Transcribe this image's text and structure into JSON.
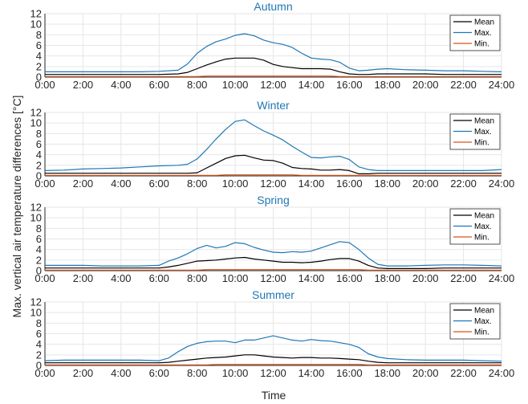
{
  "chart_data": {
    "type": "line",
    "xlabel": "Time",
    "ylabel": "Max. vertical air temperature differences [°C]",
    "x_ticks": [
      "0:00",
      "2:00",
      "4:00",
      "6:00",
      "8:00",
      "10:00",
      "12:00",
      "14:00",
      "16:00",
      "18:00",
      "20:00",
      "22:00",
      "24:00"
    ],
    "y_ticks": [
      "0",
      "2",
      "4",
      "6",
      "8",
      "10",
      "12"
    ],
    "ylim": [
      0,
      12
    ],
    "xlim_hours": [
      0,
      24
    ],
    "grid": true,
    "legend_position": "top-right",
    "series_colors": {
      "Mean": "#000000",
      "Max.": "#1f77b4",
      "Min.": "#d95319"
    },
    "panels": [
      {
        "title": "Autumn",
        "x_hours": [
          0,
          1,
          2,
          3,
          4,
          5,
          6,
          7,
          7.5,
          8,
          8.5,
          9,
          9.5,
          10,
          10.5,
          11,
          11.5,
          12,
          12.5,
          13,
          13.5,
          14,
          14.5,
          15,
          15.5,
          16,
          16.5,
          17,
          17.5,
          18,
          19,
          20,
          21,
          22,
          23,
          24
        ],
        "series": [
          {
            "name": "Mean",
            "values": [
              0.5,
              0.5,
              0.5,
              0.5,
              0.5,
              0.5,
              0.5,
              0.6,
              0.9,
              1.6,
              2.3,
              2.9,
              3.4,
              3.6,
              3.6,
              3.6,
              3.2,
              2.4,
              2.0,
              1.8,
              1.6,
              1.6,
              1.6,
              1.5,
              1.0,
              0.6,
              0.5,
              0.5,
              0.6,
              0.6,
              0.6,
              0.6,
              0.5,
              0.5,
              0.5,
              0.5
            ]
          },
          {
            "name": "Max.",
            "values": [
              1.0,
              1.0,
              1.0,
              1.0,
              1.0,
              1.0,
              1.1,
              1.3,
              2.5,
              4.5,
              5.8,
              6.7,
              7.2,
              7.9,
              8.2,
              7.8,
              7.0,
              6.5,
              6.2,
              5.6,
              4.5,
              3.6,
              3.4,
              3.3,
              2.8,
              1.7,
              1.2,
              1.3,
              1.5,
              1.6,
              1.4,
              1.3,
              1.2,
              1.2,
              1.1,
              1.0
            ]
          },
          {
            "name": "Min.",
            "values": [
              0.1,
              0.1,
              0.1,
              0.1,
              0.1,
              0.1,
              0.1,
              0.1,
              0.1,
              0.1,
              0.2,
              0.2,
              0.2,
              0.2,
              0.2,
              0.2,
              0.2,
              0.2,
              0.2,
              0.2,
              0.2,
              0.2,
              0.2,
              0.2,
              0.1,
              0.1,
              0.1,
              0.1,
              0.1,
              0.1,
              0.1,
              0.1,
              0.1,
              0.1,
              0.1,
              0.1
            ]
          }
        ]
      },
      {
        "title": "Winter",
        "x_hours": [
          0,
          1,
          2,
          3,
          4,
          5,
          6,
          7,
          7.5,
          8,
          8.5,
          9,
          9.5,
          10,
          10.5,
          11,
          11.5,
          12,
          12.5,
          13,
          13.5,
          14,
          14.5,
          15,
          15.5,
          16,
          16.5,
          17,
          17.5,
          18,
          19,
          20,
          21,
          22,
          23,
          24
        ],
        "series": [
          {
            "name": "Mean",
            "values": [
              0.5,
              0.5,
              0.5,
              0.5,
              0.5,
              0.5,
              0.5,
              0.5,
              0.5,
              0.6,
              1.5,
              2.4,
              3.3,
              3.8,
              3.9,
              3.4,
              3.0,
              2.9,
              2.4,
              1.6,
              1.4,
              1.3,
              1.1,
              1.1,
              1.2,
              1.0,
              0.4,
              0.4,
              0.5,
              0.5,
              0.5,
              0.5,
              0.5,
              0.5,
              0.5,
              0.5
            ]
          },
          {
            "name": "Max.",
            "values": [
              1.0,
              1.1,
              1.3,
              1.4,
              1.5,
              1.7,
              1.9,
              2.0,
              2.2,
              3.2,
              5.0,
              7.0,
              8.8,
              10.3,
              10.6,
              9.5,
              8.5,
              7.7,
              6.8,
              5.6,
              4.5,
              3.5,
              3.4,
              3.6,
              3.7,
              3.1,
              1.7,
              1.2,
              1.0,
              1.0,
              1.0,
              1.0,
              1.0,
              1.0,
              1.0,
              1.2
            ]
          },
          {
            "name": "Min.",
            "values": [
              0.1,
              0.1,
              0.1,
              0.1,
              0.1,
              0.1,
              0.1,
              0.1,
              0.1,
              0.1,
              0.1,
              0.1,
              0.2,
              0.2,
              0.2,
              0.2,
              0.2,
              0.2,
              0.2,
              0.2,
              0.1,
              0.1,
              0.1,
              0.1,
              0.1,
              0.1,
              0.1,
              0.1,
              0.1,
              0.1,
              0.1,
              0.1,
              0.1,
              0.1,
              0.1,
              0.1
            ]
          }
        ]
      },
      {
        "title": "Spring",
        "x_hours": [
          0,
          1,
          2,
          3,
          4,
          5,
          6,
          6.5,
          7,
          7.5,
          8,
          8.5,
          9,
          9.5,
          10,
          10.5,
          11,
          11.5,
          12,
          12.5,
          13,
          13.5,
          14,
          14.5,
          15,
          15.5,
          16,
          16.5,
          17,
          17.5,
          18,
          19,
          20,
          21,
          22,
          23,
          24
        ],
        "series": [
          {
            "name": "Mean",
            "values": [
              0.5,
              0.5,
              0.5,
              0.5,
              0.5,
              0.5,
              0.5,
              0.7,
              1.0,
              1.4,
              1.8,
              1.9,
              2.0,
              2.2,
              2.4,
              2.5,
              2.2,
              2.0,
              1.8,
              1.6,
              1.6,
              1.5,
              1.6,
              1.8,
              2.1,
              2.3,
              2.3,
              1.8,
              1.0,
              0.5,
              0.4,
              0.4,
              0.4,
              0.5,
              0.5,
              0.5,
              0.5
            ]
          },
          {
            "name": "Max.",
            "values": [
              1.0,
              1.0,
              1.0,
              0.9,
              0.9,
              0.9,
              1.0,
              1.8,
              2.4,
              3.2,
              4.2,
              4.8,
              4.3,
              4.6,
              5.3,
              5.1,
              4.4,
              3.9,
              3.5,
              3.4,
              3.6,
              3.5,
              3.7,
              4.3,
              4.9,
              5.5,
              5.3,
              4.0,
              2.4,
              1.2,
              0.9,
              0.9,
              1.0,
              1.1,
              1.1,
              1.0,
              0.9
            ]
          },
          {
            "name": "Min.",
            "values": [
              0.1,
              0.1,
              0.1,
              0.1,
              0.1,
              0.1,
              0.1,
              0.1,
              0.1,
              0.1,
              0.1,
              0.2,
              0.2,
              0.2,
              0.2,
              0.2,
              0.2,
              0.2,
              0.2,
              0.2,
              0.2,
              0.2,
              0.2,
              0.2,
              0.2,
              0.2,
              0.2,
              0.2,
              0.1,
              0.1,
              0.1,
              0.1,
              0.1,
              0.1,
              0.1,
              0.1,
              0.1
            ]
          }
        ]
      },
      {
        "title": "Summer",
        "x_hours": [
          0,
          1,
          2,
          3,
          4,
          5,
          6,
          6.5,
          7,
          7.5,
          8,
          8.5,
          9,
          9.5,
          10,
          10.5,
          11,
          11.5,
          12,
          12.5,
          13,
          13.5,
          14,
          14.5,
          15,
          15.5,
          16,
          16.5,
          17,
          17.5,
          18,
          19,
          20,
          21,
          22,
          23,
          24
        ],
        "series": [
          {
            "name": "Mean",
            "values": [
              0.5,
              0.5,
              0.5,
              0.5,
              0.5,
              0.5,
              0.5,
              0.6,
              0.8,
              1.0,
              1.2,
              1.4,
              1.5,
              1.6,
              1.8,
              2.0,
              2.0,
              1.8,
              1.6,
              1.5,
              1.4,
              1.5,
              1.5,
              1.4,
              1.4,
              1.3,
              1.2,
              1.1,
              0.8,
              0.6,
              0.5,
              0.5,
              0.5,
              0.5,
              0.5,
              0.5,
              0.5
            ]
          },
          {
            "name": "Max.",
            "values": [
              0.9,
              1.0,
              1.0,
              1.0,
              1.0,
              1.0,
              0.9,
              1.4,
              2.6,
              3.6,
              4.2,
              4.5,
              4.6,
              4.6,
              4.3,
              4.8,
              4.8,
              5.2,
              5.6,
              5.2,
              4.8,
              4.6,
              4.9,
              4.7,
              4.6,
              4.3,
              4.0,
              3.4,
              2.2,
              1.6,
              1.3,
              1.1,
              1.0,
              1.0,
              1.0,
              0.9,
              0.8
            ]
          },
          {
            "name": "Min.",
            "values": [
              0.1,
              0.1,
              0.1,
              0.1,
              0.1,
              0.1,
              0.1,
              0.1,
              0.1,
              0.1,
              0.1,
              0.1,
              0.2,
              0.2,
              0.2,
              0.2,
              0.2,
              0.2,
              0.2,
              0.2,
              0.2,
              0.2,
              0.2,
              0.2,
              0.2,
              0.2,
              0.2,
              0.2,
              0.1,
              0.1,
              0.1,
              0.1,
              0.1,
              0.1,
              0.1,
              0.1,
              0.1
            ]
          }
        ]
      }
    ]
  }
}
